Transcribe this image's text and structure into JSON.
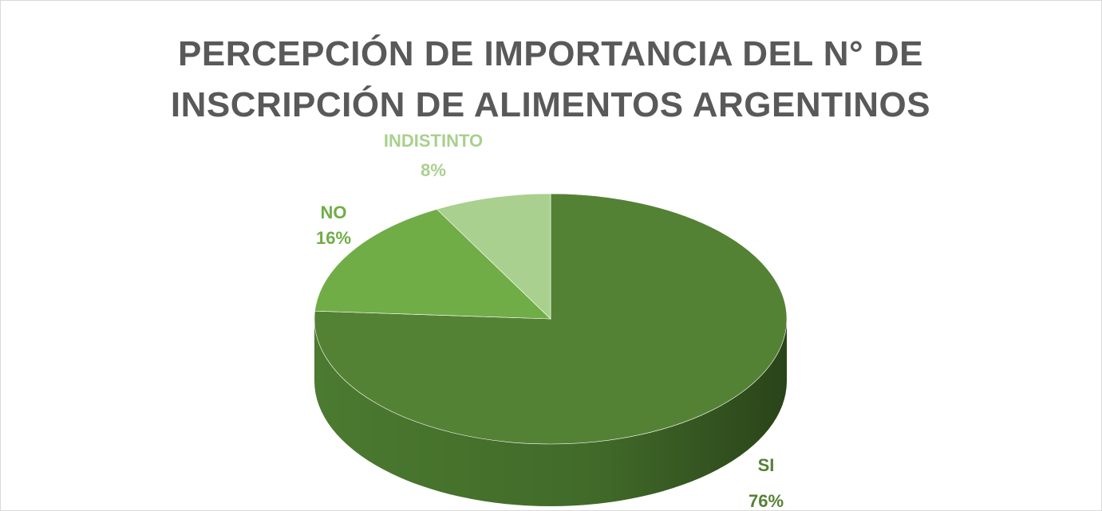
{
  "chart_data": {
    "type": "pie",
    "title": "PERCEPCIÓN DE IMPORTANCIA DEL N° DE INSCRIPCIÓN DE ALIMENTOS ARGENTINOS",
    "categories": [
      "SI",
      "NO",
      "INDISTINTO"
    ],
    "values": [
      76,
      16,
      8
    ],
    "value_labels": [
      "76%",
      "16%",
      "8%"
    ],
    "colors": [
      "#548235",
      "#70ad47",
      "#a9d08e"
    ]
  }
}
